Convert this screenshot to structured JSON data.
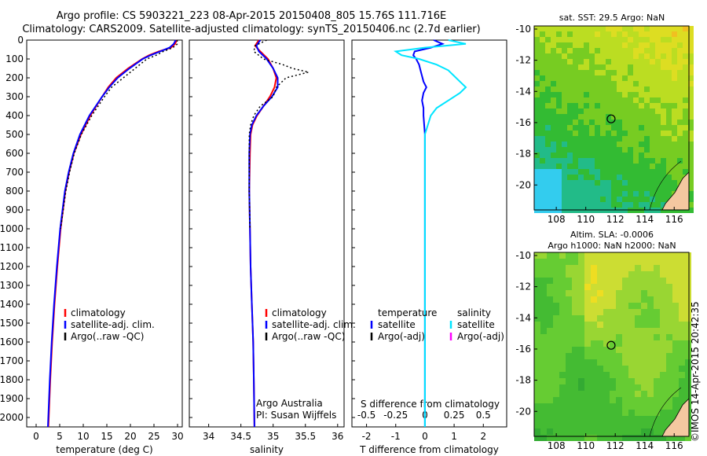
{
  "header": {
    "line1": "Argo profile: CS 5903221_223 08-Apr-2015 20150408_805 15.76S 111.716E",
    "line2": "Climatology: CARS2009. Satellite-adjusted climatology: synTS_20150406.nc (2.7d earlier)"
  },
  "side_label": "©IMOS 14-Apr-2015 20:42:35",
  "colors": {
    "climatology": "#ff0000",
    "satellite": "#0000ff",
    "argo": "#000000",
    "sat_s": "#00e5ff",
    "argo_s": "#ff00ff"
  },
  "depth_ticks": [
    "0",
    "100",
    "200",
    "300",
    "400",
    "500",
    "600",
    "700",
    "800",
    "900",
    "1000",
    "1100",
    "1200",
    "1300",
    "1400",
    "1500",
    "1600",
    "1700",
    "1800",
    "1900",
    "2000"
  ],
  "chart_data": [
    {
      "type": "line",
      "xlabel": "temperature (deg C)",
      "xlim": [
        -2,
        31
      ],
      "ylim": [
        2050,
        0
      ],
      "xticks": [
        "0",
        "5",
        "10",
        "15",
        "20",
        "25",
        "30"
      ],
      "legend": [
        "climatology",
        "satellite-adj. clim.",
        "Argo(..raw -QC)"
      ],
      "series": [
        {
          "name": "climatology",
          "depth": [
            0,
            20,
            40,
            60,
            80,
            100,
            150,
            200,
            250,
            300,
            400,
            500,
            600,
            700,
            800,
            1000,
            1200,
            1400,
            1600,
            1800,
            2050
          ],
          "values": [
            29.8,
            29.5,
            28.6,
            26.0,
            24.0,
            22.5,
            19.5,
            17.0,
            15.3,
            14.0,
            11.5,
            9.5,
            8.0,
            7.0,
            6.2,
            5.2,
            4.5,
            3.9,
            3.4,
            3.0,
            2.6
          ]
        },
        {
          "name": "satellite-adj. clim.",
          "depth": [
            0,
            20,
            40,
            60,
            80,
            100,
            150,
            200,
            250,
            300,
            400,
            500,
            600,
            700,
            800,
            1000,
            1200,
            1400,
            1600,
            1800,
            2050
          ],
          "values": [
            29.6,
            29.2,
            28.3,
            26.3,
            24.3,
            22.6,
            19.8,
            17.3,
            15.5,
            14.0,
            11.3,
            9.3,
            7.9,
            6.9,
            6.1,
            5.1,
            4.4,
            3.8,
            3.3,
            2.9,
            2.5
          ]
        },
        {
          "name": "Argo(..raw -QC)",
          "depth": [
            0,
            20,
            40,
            60,
            80,
            100,
            150,
            200,
            250,
            300,
            400,
            500,
            600,
            700,
            800,
            1000
          ],
          "values": [
            29.9,
            30.0,
            29.0,
            27.0,
            25.5,
            23.5,
            21.0,
            18.5,
            16.0,
            14.5,
            11.8,
            9.6,
            8.1,
            7.1,
            6.3,
            5.2
          ]
        }
      ]
    },
    {
      "type": "line",
      "xlabel": "salinity",
      "xlim": [
        33.7,
        36.1
      ],
      "ylim": [
        2050,
        0
      ],
      "xticks": [
        "34",
        "34.5",
        "35",
        "35.5",
        "36"
      ],
      "legend": [
        "climatology",
        "satellite-adj. clim.",
        "Argo(..raw -QC)"
      ],
      "notes": [
        "Argo Australia",
        "PI: Susan Wijffels"
      ],
      "series": [
        {
          "name": "climatology",
          "depth": [
            0,
            30,
            60,
            100,
            150,
            200,
            250,
            300,
            350,
            400,
            450,
            500,
            600,
            800,
            1000,
            1200,
            1400,
            1600,
            1800,
            2050
          ],
          "values": [
            34.78,
            34.72,
            34.8,
            34.92,
            35.0,
            35.05,
            35.02,
            34.95,
            34.85,
            34.75,
            34.68,
            34.65,
            34.64,
            34.63,
            34.64,
            34.65,
            34.67,
            34.69,
            34.7,
            34.71
          ]
        },
        {
          "name": "satellite-adj. clim.",
          "depth": [
            0,
            30,
            60,
            100,
            150,
            200,
            250,
            300,
            350,
            400,
            450,
            500,
            600,
            800,
            1000,
            1200,
            1400,
            1600,
            1800,
            2050
          ],
          "values": [
            34.8,
            34.74,
            34.78,
            34.9,
            35.0,
            35.07,
            35.07,
            34.98,
            34.85,
            34.74,
            34.67,
            34.64,
            34.63,
            34.63,
            34.64,
            34.65,
            34.67,
            34.69,
            34.7,
            34.71
          ]
        },
        {
          "name": "Argo(..raw -QC)",
          "depth": [
            0,
            30,
            60,
            100,
            130,
            150,
            170,
            200,
            250,
            300,
            350,
            400,
            450,
            500,
            600,
            800,
            1000
          ],
          "values": [
            34.9,
            34.72,
            34.7,
            34.85,
            35.15,
            35.3,
            35.55,
            35.2,
            35.05,
            35.0,
            34.8,
            34.7,
            34.65,
            34.63,
            34.63,
            34.63,
            34.64
          ]
        }
      ]
    },
    {
      "type": "line",
      "xlabel": "T difference from climatology",
      "topxlabel": "S difference from climatology",
      "xlim": [
        -2.5,
        2.8
      ],
      "ylim": [
        2050,
        0
      ],
      "xticks": [
        "-2",
        "-1",
        "0",
        "1",
        "2"
      ],
      "topticks": [
        "-0.5",
        "-0.25",
        "0",
        "0.25",
        "0.5"
      ],
      "legend_temperature": [
        "temperature",
        "satellite",
        "Argo(-adj)"
      ],
      "legend_salinity": [
        "salinity",
        "satellite",
        "Argo(-adj)"
      ],
      "series": [
        {
          "name": "temperature satellite",
          "depth": [
            0,
            20,
            40,
            60,
            80,
            100,
            130,
            160,
            190,
            220,
            250,
            280,
            320,
            360,
            400,
            500,
            600,
            800,
            1000,
            1500,
            2050
          ],
          "values": [
            0.3,
            0.6,
            0.2,
            -0.35,
            -0.4,
            -0.3,
            -0.2,
            -0.15,
            -0.1,
            -0.05,
            0.05,
            -0.05,
            -0.1,
            -0.05,
            -0.05,
            0,
            0,
            0,
            0,
            0,
            0
          ]
        },
        {
          "name": "salinity satellite",
          "depth": [
            0,
            20,
            40,
            60,
            80,
            100,
            130,
            160,
            190,
            220,
            250,
            280,
            320,
            360,
            400,
            500,
            600,
            800,
            1000,
            1500,
            2050
          ],
          "values": [
            0.2,
            0.35,
            0.0,
            -0.25,
            -0.2,
            -0.05,
            0.1,
            0.2,
            0.25,
            0.3,
            0.35,
            0.3,
            0.2,
            0.1,
            0.05,
            0,
            0,
            0,
            0,
            0,
            0
          ]
        }
      ]
    },
    {
      "type": "heatmap",
      "title": "sat. SST: 29.5 Argo: NaN",
      "xlim": [
        106.5,
        117
      ],
      "ylim": [
        -21.6,
        -9.8
      ],
      "xticks": [
        "108",
        "110",
        "112",
        "114",
        "116"
      ],
      "yticks": [
        "-10",
        "-12",
        "-14",
        "-16",
        "-18",
        "-20"
      ],
      "marker": {
        "lon": 111.72,
        "lat": -15.76
      }
    },
    {
      "type": "heatmap",
      "title": "Altim. SLA: -0.0006",
      "subtitle": "Argo h1000: NaN h2000: NaN",
      "xlim": [
        106.5,
        117
      ],
      "ylim": [
        -21.6,
        -9.8
      ],
      "xticks": [
        "108",
        "110",
        "112",
        "114",
        "116"
      ],
      "yticks": [
        "-10",
        "-12",
        "-14",
        "-16",
        "-18",
        "-20"
      ],
      "marker": {
        "lon": 111.72,
        "lat": -15.76
      }
    }
  ]
}
